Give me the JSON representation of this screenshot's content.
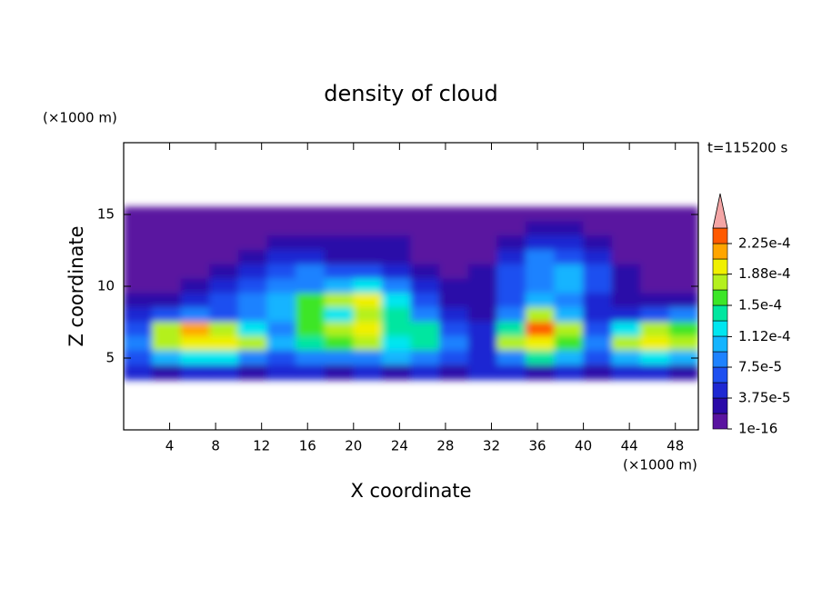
{
  "chart_data": {
    "type": "contour",
    "title": "density of cloud",
    "xlabel": "X coordinate",
    "ylabel": "Z coordinate",
    "x_unit": "(×1000 m)",
    "y_unit": "(×1000 m)",
    "time_label": "t=115200 s",
    "xlim": [
      0,
      50
    ],
    "ylim": [
      0,
      20
    ],
    "xticks": [
      4,
      8,
      12,
      16,
      20,
      24,
      28,
      32,
      36,
      40,
      44,
      48
    ],
    "yticks": [
      5,
      10,
      15
    ],
    "x": [
      1.25,
      3.75,
      6.25,
      8.75,
      11.25,
      13.75,
      16.25,
      18.75,
      21.25,
      23.75,
      26.25,
      28.75,
      31.25,
      33.75,
      36.25,
      38.75,
      41.25,
      43.75,
      46.25,
      48.75
    ],
    "y": [
      15,
      14,
      13,
      12,
      11,
      10,
      9,
      8,
      7,
      6,
      5,
      4
    ],
    "values": [
      [
        1e-05,
        1e-05,
        1e-05,
        1e-05,
        1e-05,
        1e-05,
        1e-05,
        1e-05,
        1e-05,
        1e-05,
        1e-05,
        1e-05,
        1e-05,
        1e-05,
        1e-05,
        1e-05,
        1e-05,
        1e-05,
        1e-05,
        1e-05
      ],
      [
        1e-05,
        1e-05,
        1e-05,
        1e-05,
        1e-05,
        1e-05,
        1e-05,
        1e-05,
        1e-05,
        1e-05,
        1e-05,
        1e-05,
        1e-05,
        1e-05,
        2.8e-05,
        2.8e-05,
        1e-05,
        1e-05,
        1e-05,
        1e-05
      ],
      [
        1e-05,
        1e-05,
        1e-05,
        1e-05,
        1e-05,
        2.8e-05,
        2.8e-05,
        2.8e-05,
        2.8e-05,
        2.8e-05,
        1e-05,
        1e-05,
        1e-05,
        2.8e-05,
        4.7e-05,
        4.7e-05,
        2.8e-05,
        1e-05,
        1e-05,
        1e-05
      ],
      [
        1e-05,
        1e-05,
        1e-05,
        1e-05,
        2.8e-05,
        4.7e-05,
        4.7e-05,
        2.8e-05,
        2.8e-05,
        2.8e-05,
        1e-05,
        1e-05,
        1e-05,
        4.7e-05,
        8.4e-05,
        6.5e-05,
        4.7e-05,
        1e-05,
        1e-05,
        1e-05
      ],
      [
        1e-05,
        1e-05,
        1e-05,
        2.8e-05,
        4.7e-05,
        6.5e-05,
        8.4e-05,
        6.5e-05,
        6.5e-05,
        4.7e-05,
        2.8e-05,
        1e-05,
        2.8e-05,
        6.5e-05,
        8.4e-05,
        0.000103,
        6.5e-05,
        2.8e-05,
        1e-05,
        1e-05
      ],
      [
        1e-05,
        1e-05,
        2.8e-05,
        4.7e-05,
        6.5e-05,
        8.4e-05,
        8.4e-05,
        0.000103,
        0.000122,
        8.4e-05,
        4.7e-05,
        2.8e-05,
        2.8e-05,
        6.5e-05,
        8.4e-05,
        0.000103,
        6.5e-05,
        2.8e-05,
        1e-05,
        1e-05
      ],
      [
        2.8e-05,
        2.8e-05,
        4.7e-05,
        6.5e-05,
        8.4e-05,
        0.000103,
        0.00016,
        0.000178,
        0.000197,
        0.000122,
        6.5e-05,
        2.8e-05,
        2.8e-05,
        6.5e-05,
        0.000103,
        8.4e-05,
        4.7e-05,
        2.8e-05,
        2.8e-05,
        2.8e-05
      ],
      [
        4.7e-05,
        6.5e-05,
        8.4e-05,
        6.5e-05,
        8.4e-05,
        0.000103,
        0.00016,
        0.000122,
        0.000178,
        0.00014,
        8.4e-05,
        4.7e-05,
        2.8e-05,
        8.4e-05,
        0.000178,
        0.000103,
        4.7e-05,
        4.7e-05,
        6.5e-05,
        8.4e-05
      ],
      [
        6.5e-05,
        0.000178,
        0.000216,
        0.000178,
        0.000122,
        8.4e-05,
        0.00016,
        0.000178,
        0.000197,
        0.00014,
        0.00014,
        6.5e-05,
        4.7e-05,
        0.00014,
        0.000234,
        0.000178,
        6.5e-05,
        0.000122,
        0.000178,
        0.00016
      ],
      [
        8.4e-05,
        0.000178,
        0.000197,
        0.000197,
        0.000178,
        0.000103,
        0.00014,
        0.00016,
        0.000178,
        0.000122,
        0.00014,
        8.4e-05,
        4.7e-05,
        0.000178,
        0.000197,
        0.00016,
        8.4e-05,
        0.000178,
        0.000197,
        0.000178
      ],
      [
        6.5e-05,
        0.000103,
        0.000122,
        0.000122,
        8.4e-05,
        6.5e-05,
        8.4e-05,
        8.4e-05,
        8.4e-05,
        0.000103,
        8.4e-05,
        6.5e-05,
        4.7e-05,
        8.4e-05,
        0.00014,
        0.000103,
        6.5e-05,
        0.000103,
        0.000122,
        0.000103
      ],
      [
        4.7e-05,
        2.8e-05,
        4.7e-05,
        4.7e-05,
        2.8e-05,
        4.7e-05,
        4.7e-05,
        2.8e-05,
        4.7e-05,
        2.8e-05,
        4.7e-05,
        2.8e-05,
        4.7e-05,
        4.7e-05,
        2.8e-05,
        4.7e-05,
        2.8e-05,
        4.7e-05,
        4.7e-05,
        2.8e-05
      ]
    ],
    "colorbar": {
      "levels": [
        1e-16,
        1.875e-05,
        3.75e-05,
        5.625e-05,
        7.5e-05,
        9.375e-05,
        0.0001125,
        0.00013125,
        0.00015,
        0.00016875,
        0.0001875,
        0.00020625,
        0.000225,
        0.00024375
      ],
      "colors": [
        "#5a14a0",
        "#2a0aa8",
        "#1e28d2",
        "#1e50f0",
        "#1e82ff",
        "#14b4ff",
        "#00e6f0",
        "#00e6a0",
        "#3ce628",
        "#b4f01e",
        "#f0f000",
        "#ffa500",
        "#ff5a00"
      ],
      "extend_color": "#f4a6a6",
      "ticks": [
        {
          "value": 1e-16,
          "label": "1e-16"
        },
        {
          "value": 3.75e-05,
          "label": "3.75e-5"
        },
        {
          "value": 7.5e-05,
          "label": "7.5e-5"
        },
        {
          "value": 0.000112,
          "label": "1.12e-4"
        },
        {
          "value": 0.00015,
          "label": "1.5e-4"
        },
        {
          "value": 0.000188,
          "label": "1.88e-4"
        },
        {
          "value": 0.000225,
          "label": "2.25e-4"
        }
      ]
    }
  }
}
